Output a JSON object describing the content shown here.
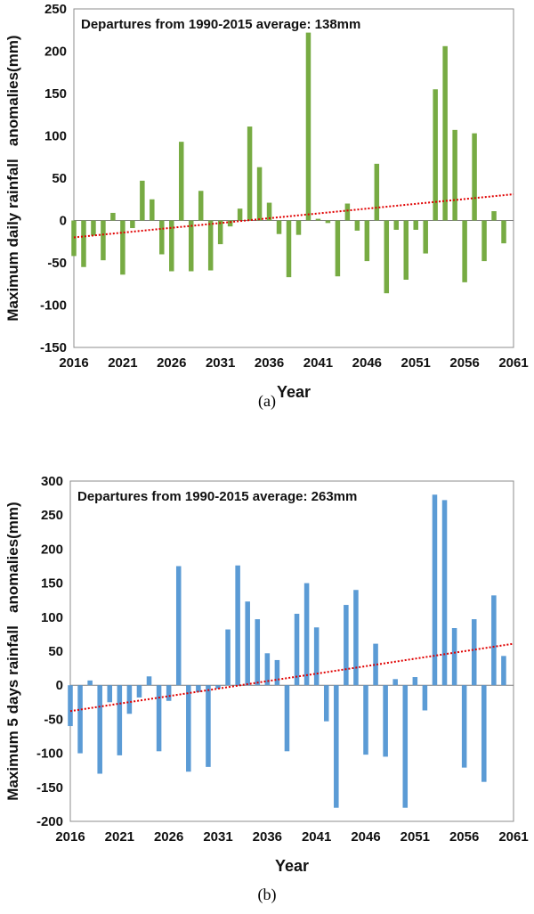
{
  "captions": {
    "a": "(a)",
    "b": "(b)"
  },
  "chart_data": [
    {
      "type": "bar",
      "annotation": "Departures from 1990-2015 average: 138mm",
      "xlabel": "Year",
      "ylabel": "Maximum daily rainfall   anomalies(mm)",
      "ylim": [
        -150,
        250
      ],
      "yticks": [
        -150,
        -100,
        -50,
        0,
        50,
        100,
        150,
        200,
        250
      ],
      "xticks": [
        "2016",
        "2021",
        "2026",
        "2031",
        "2036",
        "2041",
        "2046",
        "2051",
        "2056",
        "2061"
      ],
      "bar_color": "#77ab43",
      "trend_color": "#e00000",
      "grid": false,
      "series": [
        {
          "x": [
            2016,
            2017,
            2018,
            2019,
            2020,
            2021,
            2022,
            2023,
            2024,
            2025,
            2026,
            2027,
            2028,
            2029,
            2030,
            2031,
            2032,
            2033,
            2034,
            2035,
            2036,
            2037,
            2038,
            2039,
            2040,
            2041,
            2042,
            2043,
            2044,
            2045,
            2046,
            2047,
            2048,
            2049,
            2050,
            2051,
            2052,
            2053,
            2054,
            2055,
            2056,
            2057,
            2058,
            2059,
            2060
          ],
          "values": [
            -42,
            -55,
            -18,
            -47,
            9,
            -64,
            -9,
            47,
            25,
            -40,
            -60,
            93,
            -60,
            35,
            -59,
            -28,
            -7,
            14,
            111,
            63,
            21,
            -16,
            -67,
            -17,
            222,
            2,
            -3,
            -66,
            20,
            -12,
            -48,
            67,
            -86,
            -11,
            -70,
            -11,
            -39,
            155,
            206,
            107,
            -73,
            103,
            -48,
            11,
            -27
          ]
        }
      ],
      "trend": {
        "from": [
          2016,
          -20
        ],
        "to": [
          2061,
          31
        ]
      }
    },
    {
      "type": "bar",
      "annotation": "Departures from 1990-2015 average: 263mm",
      "xlabel": "Year",
      "ylabel": "Maximum 5 days rainfall   anomalies(mm)",
      "ylim": [
        -200,
        300
      ],
      "yticks": [
        -200,
        -150,
        -100,
        -50,
        0,
        50,
        100,
        150,
        200,
        250,
        300
      ],
      "xticks": [
        "2016",
        "2021",
        "2026",
        "2031",
        "2036",
        "2041",
        "2046",
        "2051",
        "2056",
        "2061"
      ],
      "bar_color": "#5b9bd5",
      "trend_color": "#e00000",
      "grid": false,
      "series": [
        {
          "x": [
            2016,
            2017,
            2018,
            2019,
            2020,
            2021,
            2022,
            2023,
            2024,
            2025,
            2026,
            2027,
            2028,
            2029,
            2030,
            2031,
            2032,
            2033,
            2034,
            2035,
            2036,
            2037,
            2038,
            2039,
            2040,
            2041,
            2042,
            2043,
            2044,
            2045,
            2046,
            2047,
            2048,
            2049,
            2050,
            2051,
            2052,
            2053,
            2054,
            2055,
            2056,
            2057,
            2058,
            2059,
            2060
          ],
          "values": [
            -60,
            -100,
            7,
            -130,
            -25,
            -103,
            -42,
            -18,
            13,
            -97,
            -23,
            175,
            -127,
            -10,
            -120,
            -5,
            82,
            176,
            123,
            97,
            47,
            37,
            -97,
            105,
            150,
            85,
            -53,
            -180,
            118,
            140,
            -102,
            61,
            -105,
            9,
            -180,
            12,
            -37,
            280,
            272,
            84,
            -121,
            97,
            -142,
            132,
            43
          ]
        }
      ],
      "trend": {
        "from": [
          2016,
          -38
        ],
        "to": [
          2061,
          61
        ]
      }
    }
  ]
}
